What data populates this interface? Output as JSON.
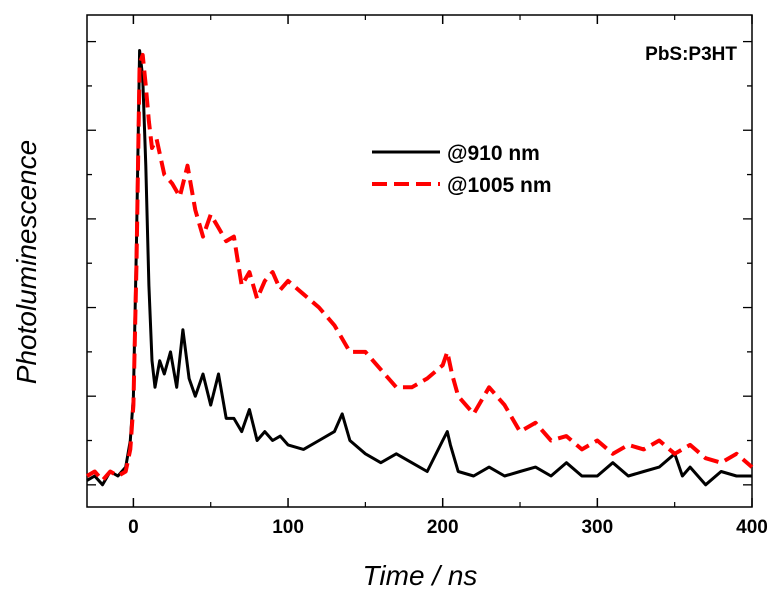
{
  "chart_data": {
    "type": "line",
    "title": "",
    "annotation": "PbS:P3HT",
    "xlabel": "Time / ns",
    "ylabel": "Photoluminescence",
    "xlim": [
      -30,
      400
    ],
    "ylim": [
      -0.05,
      1.06
    ],
    "xticks": [
      0,
      100,
      200,
      300,
      400
    ],
    "y_tick_labels_shown": false,
    "grid": false,
    "legend_position": "upper-center",
    "series": [
      {
        "name": "@910 nm",
        "color": "#000000",
        "style": "solid",
        "x": [
          -30,
          -25,
          -20,
          -15,
          -10,
          -5,
          -2,
          0,
          2,
          4,
          6,
          8,
          10,
          12,
          14,
          17,
          20,
          24,
          28,
          32,
          36,
          40,
          45,
          50,
          55,
          60,
          65,
          70,
          75,
          80,
          85,
          90,
          95,
          100,
          110,
          120,
          130,
          135,
          140,
          150,
          160,
          170,
          180,
          190,
          200,
          203,
          205,
          210,
          220,
          230,
          240,
          250,
          260,
          270,
          280,
          290,
          300,
          310,
          320,
          330,
          340,
          350,
          355,
          360,
          370,
          380,
          390,
          400
        ],
        "y": [
          0.01,
          0.02,
          0.0,
          0.03,
          0.02,
          0.04,
          0.1,
          0.2,
          0.55,
          0.98,
          0.92,
          0.72,
          0.45,
          0.28,
          0.22,
          0.28,
          0.25,
          0.3,
          0.22,
          0.35,
          0.24,
          0.2,
          0.25,
          0.18,
          0.25,
          0.15,
          0.15,
          0.12,
          0.17,
          0.1,
          0.12,
          0.1,
          0.11,
          0.09,
          0.08,
          0.1,
          0.12,
          0.16,
          0.1,
          0.07,
          0.05,
          0.07,
          0.05,
          0.03,
          0.1,
          0.12,
          0.09,
          0.03,
          0.02,
          0.04,
          0.02,
          0.03,
          0.04,
          0.02,
          0.05,
          0.02,
          0.02,
          0.05,
          0.02,
          0.03,
          0.04,
          0.07,
          0.02,
          0.04,
          0.0,
          0.03,
          0.02,
          0.02
        ]
      },
      {
        "name": "@1005 nm",
        "color": "#ff0000",
        "style": "dashed",
        "x": [
          -30,
          -25,
          -20,
          -15,
          -10,
          -5,
          -2,
          0,
          2,
          4,
          6,
          8,
          10,
          12,
          15,
          20,
          25,
          30,
          35,
          40,
          45,
          50,
          55,
          60,
          65,
          70,
          75,
          80,
          85,
          90,
          95,
          100,
          110,
          120,
          130,
          140,
          150,
          160,
          170,
          180,
          190,
          200,
          203,
          206,
          210,
          220,
          230,
          240,
          250,
          260,
          270,
          280,
          290,
          300,
          310,
          320,
          330,
          340,
          350,
          360,
          370,
          380,
          390,
          400
        ],
        "y": [
          0.02,
          0.03,
          0.01,
          0.03,
          0.02,
          0.03,
          0.08,
          0.18,
          0.5,
          0.95,
          0.97,
          0.9,
          0.82,
          0.76,
          0.78,
          0.7,
          0.68,
          0.65,
          0.72,
          0.62,
          0.56,
          0.61,
          0.58,
          0.55,
          0.56,
          0.45,
          0.48,
          0.42,
          0.46,
          0.48,
          0.44,
          0.46,
          0.43,
          0.4,
          0.36,
          0.3,
          0.3,
          0.26,
          0.22,
          0.22,
          0.24,
          0.27,
          0.3,
          0.25,
          0.2,
          0.16,
          0.22,
          0.18,
          0.12,
          0.14,
          0.1,
          0.11,
          0.08,
          0.1,
          0.07,
          0.09,
          0.08,
          0.1,
          0.07,
          0.09,
          0.06,
          0.05,
          0.07,
          0.04
        ]
      }
    ]
  }
}
